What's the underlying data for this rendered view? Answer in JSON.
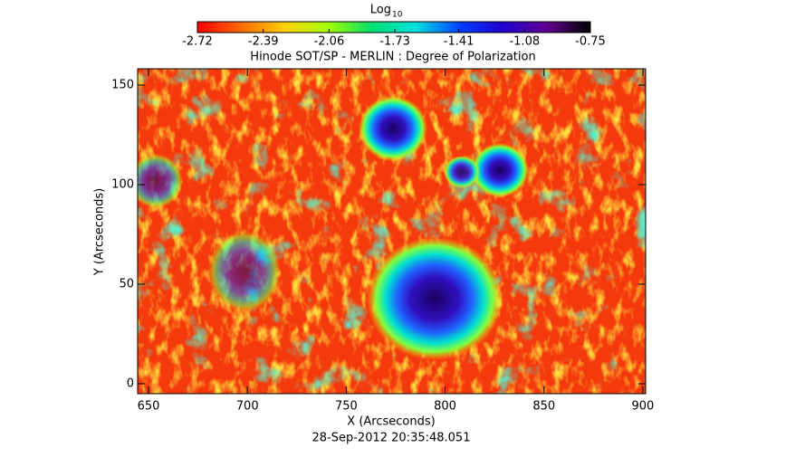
{
  "chart_data": {
    "type": "heatmap",
    "title": "Hinode SOT/SP - MERLIN : Degree of Polarization",
    "x_label": "X (Arcseconds)",
    "y_label": "Y (Arcseconds)",
    "footer": "28-Sep-2012 20:35:48.051",
    "xlim": [
      644.5,
      901.4
    ],
    "ylim": [
      -5,
      158.2
    ],
    "xticks": [
      650,
      700,
      750,
      800,
      850,
      900
    ],
    "yticks": [
      0,
      50,
      100,
      150
    ],
    "colorbar": {
      "label": "Log",
      "label_subscript": "10",
      "lim": [
        -2.72,
        -0.75
      ],
      "ticks": [
        -2.72,
        -2.39,
        -2.06,
        -1.73,
        -1.41,
        -1.08,
        -0.75
      ],
      "colormap": [
        "#ff0000",
        "#ff6a00",
        "#ffd000",
        "#a0ff00",
        "#00e070",
        "#00e0e0",
        "#0040ff",
        "#2000d0",
        "#600090",
        "#000000"
      ]
    }
  }
}
